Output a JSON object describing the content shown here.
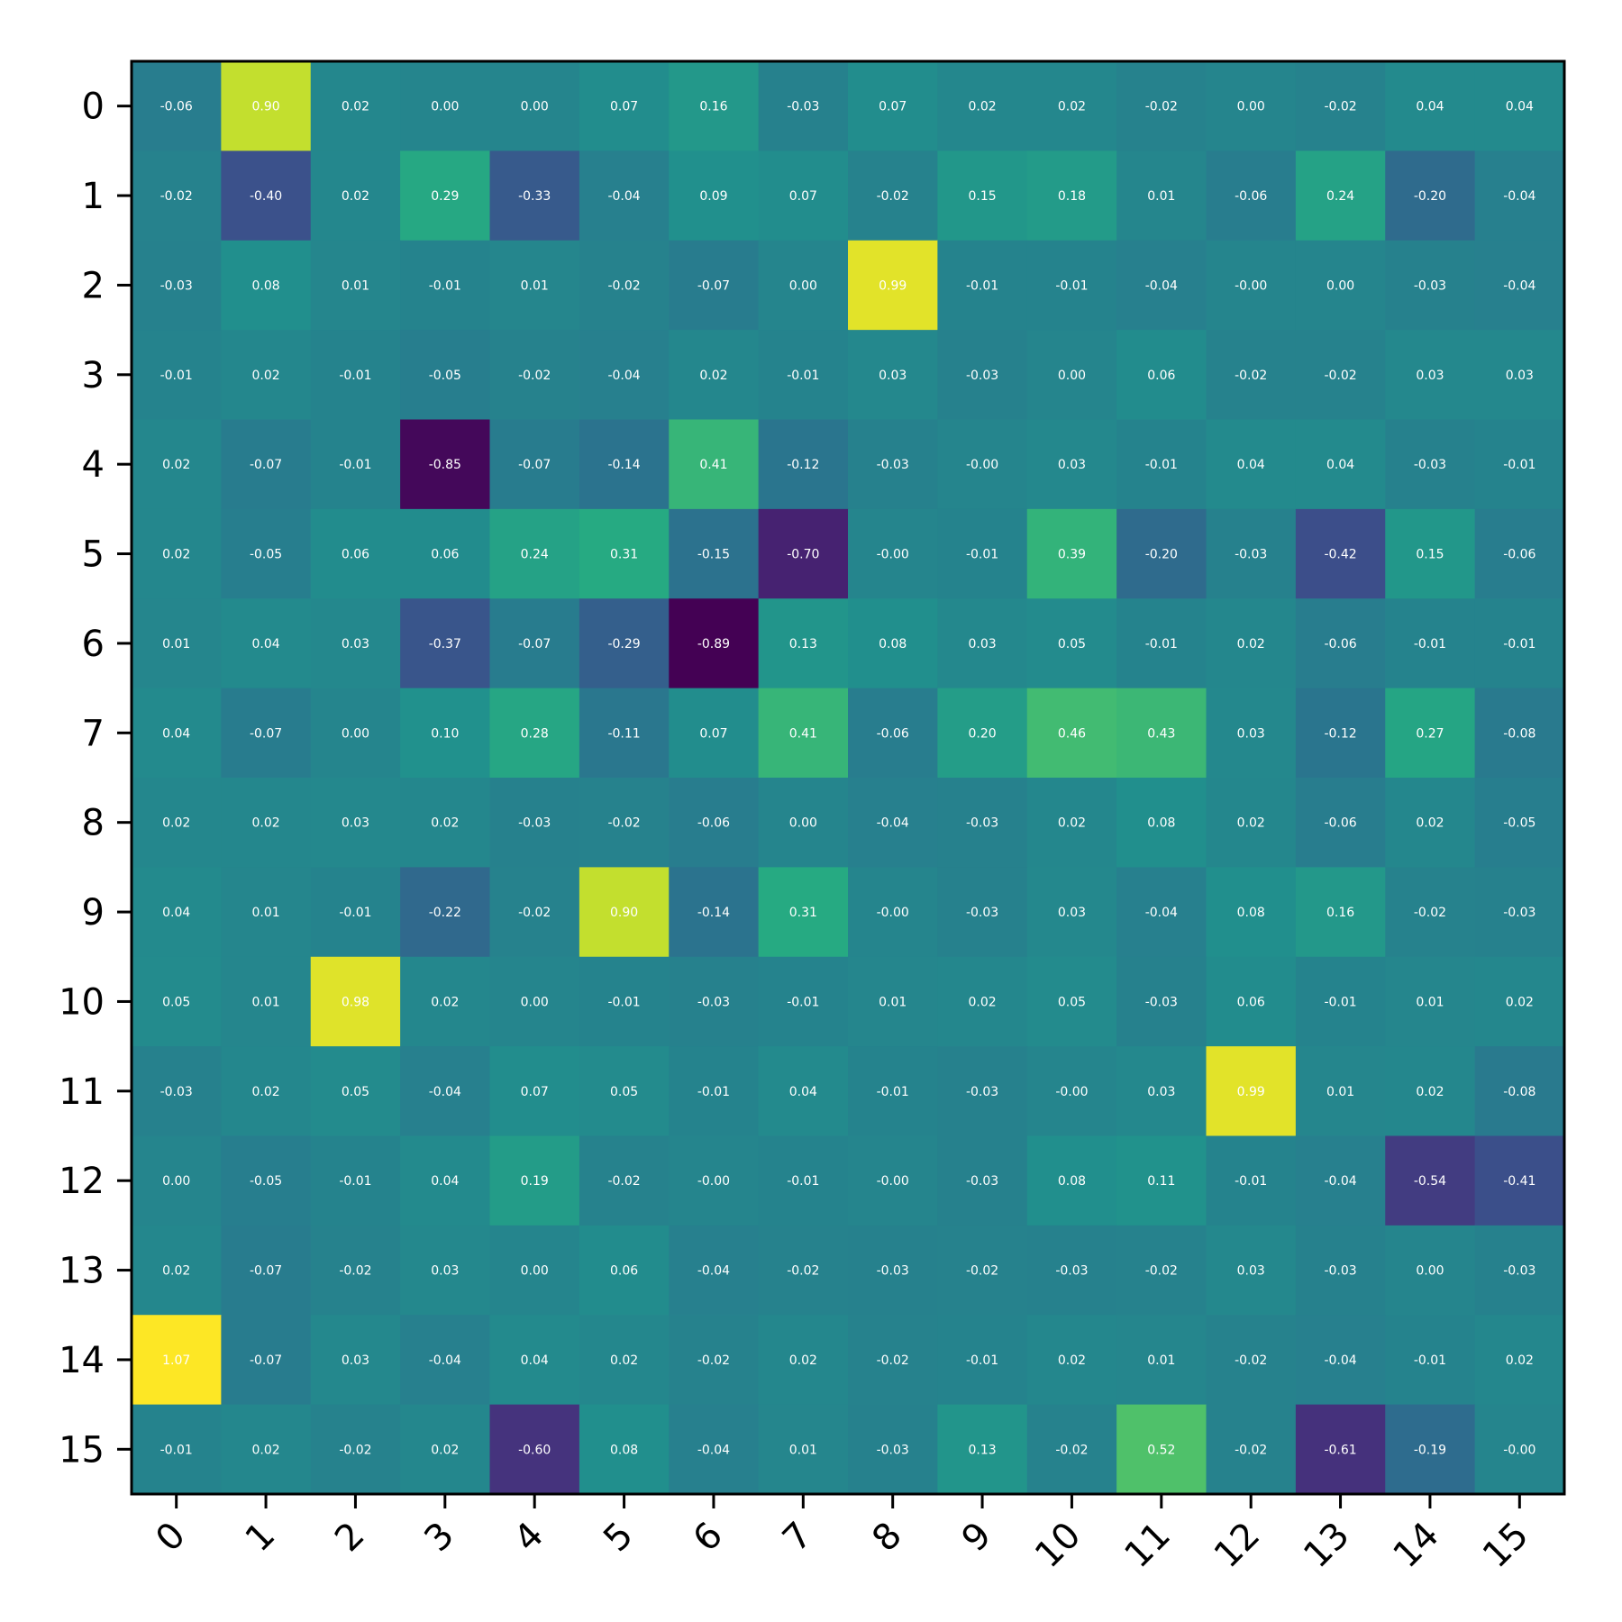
{
  "chart_data": {
    "type": "heatmap",
    "colormap": "viridis",
    "value_range": [
      -0.89,
      1.07
    ],
    "x_tick_labels": [
      "0",
      "1",
      "2",
      "3",
      "4",
      "5",
      "6",
      "7",
      "8",
      "9",
      "10",
      "11",
      "12",
      "13",
      "14",
      "15"
    ],
    "y_tick_labels": [
      "0",
      "1",
      "2",
      "3",
      "4",
      "5",
      "6",
      "7",
      "8",
      "9",
      "10",
      "11",
      "12",
      "13",
      "14",
      "15"
    ],
    "x_tick_rotation": 45,
    "values": [
      [
        -0.06,
        0.9,
        0.02,
        0.0,
        0.0,
        0.07,
        0.16,
        -0.03,
        0.07,
        0.02,
        0.02,
        -0.02,
        0.0,
        -0.02,
        0.04,
        0.04
      ],
      [
        -0.02,
        -0.4,
        0.02,
        0.29,
        -0.33,
        -0.04,
        0.09,
        0.07,
        -0.02,
        0.15,
        0.18,
        0.01,
        -0.06,
        0.24,
        -0.2,
        -0.04
      ],
      [
        -0.03,
        0.08,
        0.01,
        -0.01,
        0.01,
        -0.02,
        -0.07,
        0.0,
        0.99,
        -0.01,
        -0.01,
        -0.04,
        -0.0,
        0.0,
        -0.03,
        -0.04
      ],
      [
        -0.01,
        0.02,
        -0.01,
        -0.05,
        -0.02,
        -0.04,
        0.02,
        -0.01,
        0.03,
        -0.03,
        0.0,
        0.06,
        -0.02,
        -0.02,
        0.03,
        0.03
      ],
      [
        0.02,
        -0.07,
        -0.01,
        -0.85,
        -0.07,
        -0.14,
        0.41,
        -0.12,
        -0.03,
        -0.0,
        0.03,
        -0.01,
        0.04,
        0.04,
        -0.03,
        -0.01
      ],
      [
        0.02,
        -0.05,
        0.06,
        0.06,
        0.24,
        0.31,
        -0.15,
        -0.7,
        -0.0,
        -0.01,
        0.39,
        -0.2,
        -0.03,
        -0.42,
        0.15,
        -0.06
      ],
      [
        0.01,
        0.04,
        0.03,
        -0.37,
        -0.07,
        -0.29,
        -0.89,
        0.13,
        0.08,
        0.03,
        0.05,
        -0.01,
        0.02,
        -0.06,
        -0.01,
        -0.01
      ],
      [
        0.04,
        -0.07,
        0.0,
        0.1,
        0.28,
        -0.11,
        0.07,
        0.41,
        -0.06,
        0.2,
        0.46,
        0.43,
        0.03,
        -0.12,
        0.27,
        -0.08
      ],
      [
        0.02,
        0.02,
        0.03,
        0.02,
        -0.03,
        -0.02,
        -0.06,
        0.0,
        -0.04,
        -0.03,
        0.02,
        0.08,
        0.02,
        -0.06,
        0.02,
        -0.05
      ],
      [
        0.04,
        0.01,
        -0.01,
        -0.22,
        -0.02,
        0.9,
        -0.14,
        0.31,
        -0.0,
        -0.03,
        0.03,
        -0.04,
        0.08,
        0.16,
        -0.02,
        -0.03
      ],
      [
        0.05,
        0.01,
        0.98,
        0.02,
        0.0,
        -0.01,
        -0.03,
        -0.01,
        0.01,
        0.02,
        0.05,
        -0.03,
        0.06,
        -0.01,
        0.01,
        0.02
      ],
      [
        -0.03,
        0.02,
        0.05,
        -0.04,
        0.07,
        0.05,
        -0.01,
        0.04,
        -0.01,
        -0.03,
        -0.0,
        0.03,
        0.99,
        0.01,
        0.02,
        -0.08
      ],
      [
        0.0,
        -0.05,
        -0.01,
        0.04,
        0.19,
        -0.02,
        -0.0,
        -0.01,
        -0.0,
        -0.03,
        0.08,
        0.11,
        -0.01,
        -0.04,
        -0.54,
        -0.41
      ],
      [
        0.02,
        -0.07,
        -0.02,
        0.03,
        0.0,
        0.06,
        -0.04,
        -0.02,
        -0.03,
        -0.02,
        -0.03,
        -0.02,
        0.03,
        -0.03,
        0.0,
        -0.03
      ],
      [
        1.07,
        -0.07,
        0.03,
        -0.04,
        0.04,
        0.02,
        -0.02,
        0.02,
        -0.02,
        -0.01,
        0.02,
        0.01,
        -0.02,
        -0.04,
        -0.01,
        0.02
      ],
      [
        -0.01,
        0.02,
        -0.02,
        0.02,
        -0.6,
        0.08,
        -0.04,
        0.01,
        -0.03,
        0.13,
        -0.02,
        0.52,
        -0.02,
        -0.61,
        -0.19,
        -0.0
      ]
    ],
    "cell_labels": [
      [
        "-0.06",
        "0.90",
        "0.02",
        "0.00",
        "0.00",
        "0.07",
        "0.16",
        "-0.03",
        "0.07",
        "0.02",
        "0.02",
        "-0.02",
        "0.00",
        "-0.02",
        "0.04",
        "0.04"
      ],
      [
        "-0.02",
        "-0.40",
        "0.02",
        "0.29",
        "-0.33",
        "-0.04",
        "0.09",
        "0.07",
        "-0.02",
        "0.15",
        "0.18",
        "0.01",
        "-0.06",
        "0.24",
        "-0.20",
        "-0.04"
      ],
      [
        "-0.03",
        "0.08",
        "0.01",
        "-0.01",
        "0.01",
        "-0.02",
        "-0.07",
        "0.00",
        "0.99",
        "-0.01",
        "-0.01",
        "-0.04",
        "-0.00",
        "0.00",
        "-0.03",
        "-0.04"
      ],
      [
        "-0.01",
        "0.02",
        "-0.01",
        "-0.05",
        "-0.02",
        "-0.04",
        "0.02",
        "-0.01",
        "0.03",
        "-0.03",
        "0.00",
        "0.06",
        "-0.02",
        "-0.02",
        "0.03",
        "0.03"
      ],
      [
        "0.02",
        "-0.07",
        "-0.01",
        "-0.85",
        "-0.07",
        "-0.14",
        "0.41",
        "-0.12",
        "-0.03",
        "-0.00",
        "0.03",
        "-0.01",
        "0.04",
        "0.04",
        "-0.03",
        "-0.01"
      ],
      [
        "0.02",
        "-0.05",
        "0.06",
        "0.06",
        "0.24",
        "0.31",
        "-0.15",
        "-0.70",
        "-0.00",
        "-0.01",
        "0.39",
        "-0.20",
        "-0.03",
        "-0.42",
        "0.15",
        "-0.06"
      ],
      [
        "0.01",
        "0.04",
        "0.03",
        "-0.37",
        "-0.07",
        "-0.29",
        "-0.89",
        "0.13",
        "0.08",
        "0.03",
        "0.05",
        "-0.01",
        "0.02",
        "-0.06",
        "-0.01",
        "-0.01"
      ],
      [
        "0.04",
        "-0.07",
        "0.00",
        "0.10",
        "0.28",
        "-0.11",
        "0.07",
        "0.41",
        "-0.06",
        "0.20",
        "0.46",
        "0.43",
        "0.03",
        "-0.12",
        "0.27",
        "-0.08"
      ],
      [
        "0.02",
        "0.02",
        "0.03",
        "0.02",
        "-0.03",
        "-0.02",
        "-0.06",
        "0.00",
        "-0.04",
        "-0.03",
        "0.02",
        "0.08",
        "0.02",
        "-0.06",
        "0.02",
        "-0.05"
      ],
      [
        "0.04",
        "0.01",
        "-0.01",
        "-0.22",
        "-0.02",
        "0.90",
        "-0.14",
        "0.31",
        "-0.00",
        "-0.03",
        "0.03",
        "-0.04",
        "0.08",
        "0.16",
        "-0.02",
        "-0.03"
      ],
      [
        "0.05",
        "0.01",
        "0.98",
        "0.02",
        "0.00",
        "-0.01",
        "-0.03",
        "-0.01",
        "0.01",
        "0.02",
        "0.05",
        "-0.03",
        "0.06",
        "-0.01",
        "0.01",
        "0.02"
      ],
      [
        "-0.03",
        "0.02",
        "0.05",
        "-0.04",
        "0.07",
        "0.05",
        "-0.01",
        "0.04",
        "-0.01",
        "-0.03",
        "-0.00",
        "0.03",
        "0.99",
        "0.01",
        "0.02",
        "-0.08"
      ],
      [
        "0.00",
        "-0.05",
        "-0.01",
        "0.04",
        "0.19",
        "-0.02",
        "-0.00",
        "-0.01",
        "-0.00",
        "-0.03",
        "0.08",
        "0.11",
        "-0.01",
        "-0.04",
        "-0.54",
        "-0.41"
      ],
      [
        "0.02",
        "-0.07",
        "-0.02",
        "0.03",
        "0.00",
        "0.06",
        "-0.04",
        "-0.02",
        "-0.03",
        "-0.02",
        "-0.03",
        "-0.02",
        "0.03",
        "-0.03",
        "0.00",
        "-0.03"
      ],
      [
        "1.07",
        "-0.07",
        "0.03",
        "-0.04",
        "0.04",
        "0.02",
        "-0.02",
        "0.02",
        "-0.02",
        "-0.01",
        "0.02",
        "0.01",
        "-0.02",
        "-0.04",
        "-0.01",
        "0.02"
      ],
      [
        "-0.01",
        "0.02",
        "-0.02",
        "0.02",
        "-0.60",
        "0.08",
        "-0.04",
        "0.01",
        "-0.03",
        "0.13",
        "-0.02",
        "0.52",
        "-0.02",
        "-0.61",
        "-0.19",
        "-0.00"
      ]
    ],
    "title": "",
    "xlabel": "",
    "ylabel": "",
    "legend": "none",
    "grid": false
  }
}
